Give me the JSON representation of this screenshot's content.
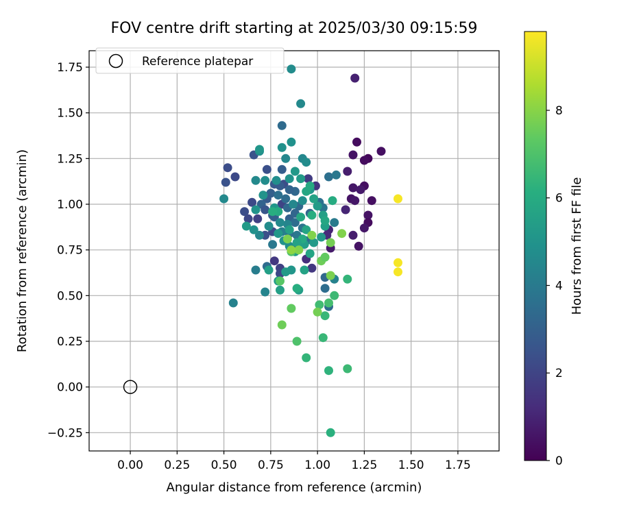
{
  "chart_data": {
    "type": "scatter",
    "title": "FOV centre drift starting at 2025/03/30 09:15:59",
    "xlabel": "Angular distance from reference (arcmin)",
    "ylabel": "Rotation from reference (arcmin)",
    "colorbar_label": "Hours from first FF file",
    "xlim": [
      -0.22,
      1.97
    ],
    "ylim": [
      -0.35,
      1.84
    ],
    "clim": [
      0,
      9.8
    ],
    "colormap": "viridis",
    "grid": true,
    "legend_position": "top-left",
    "x_ticks": [
      "0.00",
      "0.25",
      "0.50",
      "0.75",
      "1.00",
      "1.25",
      "1.50",
      "1.75"
    ],
    "x_tick_values": [
      0,
      0.25,
      0.5,
      0.75,
      1.0,
      1.25,
      1.5,
      1.75
    ],
    "y_ticks": [
      "−0.25",
      "0.00",
      "0.25",
      "0.50",
      "0.75",
      "1.00",
      "1.25",
      "1.50",
      "1.75"
    ],
    "y_tick_values": [
      -0.25,
      0,
      0.25,
      0.5,
      0.75,
      1.0,
      1.25,
      1.5,
      1.75
    ],
    "colorbar_ticks": [
      "0",
      "2",
      "4",
      "6",
      "8"
    ],
    "colorbar_tick_values": [
      0,
      2,
      4,
      6,
      8
    ],
    "reference": {
      "label": "Reference platepar",
      "x": 0,
      "y": 0
    },
    "points": [
      [
        1.2,
        1.69,
        0.9
      ],
      [
        1.21,
        1.34,
        0.3
      ],
      [
        1.34,
        1.29,
        0.4
      ],
      [
        1.27,
        1.25,
        0.2
      ],
      [
        1.25,
        1.24,
        0.3
      ],
      [
        1.19,
        1.27,
        0.5
      ],
      [
        1.16,
        1.18,
        0.8
      ],
      [
        1.19,
        1.09,
        0.6
      ],
      [
        1.25,
        1.1,
        0.4
      ],
      [
        1.23,
        1.08,
        0.7
      ],
      [
        1.18,
        1.03,
        0.5
      ],
      [
        1.2,
        1.02,
        0.6
      ],
      [
        1.29,
        1.02,
        0.4
      ],
      [
        1.27,
        0.94,
        0.5
      ],
      [
        1.27,
        0.9,
        0.3
      ],
      [
        1.15,
        0.97,
        1.0
      ],
      [
        1.25,
        0.87,
        0.6
      ],
      [
        1.19,
        0.83,
        0.8
      ],
      [
        1.22,
        0.77,
        0.5
      ],
      [
        1.07,
        0.76,
        0.7
      ],
      [
        1.06,
        0.86,
        1.0
      ],
      [
        1.05,
        0.83,
        1.2
      ],
      [
        0.99,
        1.1,
        1.5
      ],
      [
        0.95,
        1.14,
        1.7
      ],
      [
        0.94,
        0.7,
        1.3
      ],
      [
        0.97,
        0.65,
        1.6
      ],
      [
        0.87,
        0.75,
        1.8
      ],
      [
        0.77,
        0.69,
        1.6
      ],
      [
        0.8,
        0.65,
        1.9
      ],
      [
        0.8,
        0.62,
        2.1
      ],
      [
        0.82,
        1.11,
        2.3
      ],
      [
        0.81,
        1.0,
        2.0
      ],
      [
        0.76,
        0.85,
        2.2
      ],
      [
        0.72,
        0.83,
        2.4
      ],
      [
        0.68,
        0.92,
        1.9
      ],
      [
        0.63,
        0.92,
        2.1
      ],
      [
        0.61,
        0.96,
        2.3
      ],
      [
        0.65,
        1.01,
        2.2
      ],
      [
        0.56,
        1.15,
        2.2
      ],
      [
        0.52,
        1.2,
        2.3
      ],
      [
        0.51,
        1.12,
        2.5
      ],
      [
        0.66,
        1.27,
        2.5
      ],
      [
        0.73,
        1.19,
        2.4
      ],
      [
        0.8,
        1.1,
        2.8
      ],
      [
        0.81,
        1.43,
        3.4
      ],
      [
        0.81,
        1.19,
        2.9
      ],
      [
        0.77,
        1.11,
        2.7
      ],
      [
        0.75,
        1.06,
        3.0
      ],
      [
        0.73,
        1.03,
        2.8
      ],
      [
        0.7,
        1.0,
        3.1
      ],
      [
        0.72,
        0.97,
        2.6
      ],
      [
        0.76,
        0.94,
        2.8
      ],
      [
        0.77,
        0.93,
        3.0
      ],
      [
        0.85,
        0.92,
        3.0
      ],
      [
        0.88,
        0.95,
        3.2
      ],
      [
        0.9,
        0.99,
        3.3
      ],
      [
        0.88,
        1.07,
        3.3
      ],
      [
        0.85,
        1.08,
        3.1
      ],
      [
        0.83,
        1.03,
        3.4
      ],
      [
        0.79,
        1.05,
        3.6
      ],
      [
        0.84,
        0.98,
        3.3
      ],
      [
        0.88,
        0.9,
        3.5
      ],
      [
        0.92,
        0.87,
        3.7
      ],
      [
        0.96,
        0.95,
        3.2
      ],
      [
        1.01,
        1.01,
        3.6
      ],
      [
        1.03,
        0.98,
        3.8
      ],
      [
        1.06,
        1.15,
        3.6
      ],
      [
        1.1,
        1.16,
        3.9
      ],
      [
        1.09,
        0.9,
        4.0
      ],
      [
        1.04,
        0.6,
        3.3
      ],
      [
        1.04,
        0.54,
        3.5
      ],
      [
        1.09,
        0.59,
        4.3
      ],
      [
        1.06,
        0.44,
        3.4
      ],
      [
        0.94,
        0.8,
        3.5
      ],
      [
        0.89,
        0.83,
        3.9
      ],
      [
        0.85,
        0.84,
        3.6
      ],
      [
        0.81,
        0.85,
        4.2
      ],
      [
        0.76,
        0.78,
        3.9
      ],
      [
        0.73,
        0.66,
        3.4
      ],
      [
        0.67,
        0.64,
        4.1
      ],
      [
        0.72,
        0.52,
        4.4
      ],
      [
        0.55,
        0.46,
        4.3
      ],
      [
        0.5,
        1.03,
        4.6
      ],
      [
        0.67,
        1.13,
        4.6
      ],
      [
        0.69,
        1.29,
        4.8
      ],
      [
        0.69,
        1.3,
        5.1
      ],
      [
        0.72,
        1.13,
        4.7
      ],
      [
        0.78,
        1.13,
        4.8
      ],
      [
        0.81,
        1.31,
        4.9
      ],
      [
        0.83,
        1.25,
        4.5
      ],
      [
        0.86,
        1.34,
        4.9
      ],
      [
        0.86,
        1.74,
        4.7
      ],
      [
        0.91,
        1.55,
        4.6
      ],
      [
        0.92,
        1.25,
        4.5
      ],
      [
        0.94,
        1.23,
        4.7
      ],
      [
        0.88,
        1.18,
        5.2
      ],
      [
        0.85,
        1.14,
        5.0
      ],
      [
        0.91,
        1.14,
        5.3
      ],
      [
        0.96,
        1.08,
        5.1
      ],
      [
        0.92,
        1.02,
        4.8
      ],
      [
        0.87,
        1.0,
        4.5
      ],
      [
        0.84,
        0.89,
        4.4
      ],
      [
        0.8,
        0.9,
        4.6
      ],
      [
        0.74,
        0.88,
        4.7
      ],
      [
        0.69,
        0.83,
        4.5
      ],
      [
        0.66,
        0.86,
        4.9
      ],
      [
        0.62,
        0.88,
        5.3
      ],
      [
        0.67,
        0.97,
        5.0
      ],
      [
        0.71,
        1.05,
        5.0
      ],
      [
        0.77,
        0.98,
        5.1
      ],
      [
        0.79,
        0.84,
        5.2
      ],
      [
        0.82,
        0.8,
        5.0
      ],
      [
        0.85,
        0.77,
        4.8
      ],
      [
        0.88,
        0.74,
        5.3
      ],
      [
        0.86,
        0.64,
        5.1
      ],
      [
        0.83,
        0.63,
        5.3
      ],
      [
        0.79,
        0.58,
        5.4
      ],
      [
        0.74,
        0.64,
        5.5
      ],
      [
        0.8,
        0.53,
        5.5
      ],
      [
        0.9,
        0.53,
        5.4
      ],
      [
        0.93,
        0.64,
        5.6
      ],
      [
        0.96,
        0.73,
        5.7
      ],
      [
        0.93,
        0.78,
        5.4
      ],
      [
        0.98,
        0.79,
        5.3
      ],
      [
        1.02,
        0.82,
        5.2
      ],
      [
        1.04,
        0.88,
        5.5
      ],
      [
        1.03,
        0.94,
        5.5
      ],
      [
        1.0,
        0.99,
        5.3
      ],
      [
        0.98,
        1.03,
        5.6
      ],
      [
        0.94,
        1.07,
        5.8
      ],
      [
        0.96,
        1.1,
        5.9
      ],
      [
        0.91,
        0.93,
        5.8
      ],
      [
        0.94,
        0.86,
        5.7
      ],
      [
        0.92,
        0.81,
        5.9
      ],
      [
        0.89,
        0.79,
        5.6
      ],
      [
        0.85,
        0.86,
        5.5
      ],
      [
        0.79,
        0.96,
        5.9
      ],
      [
        0.76,
        0.96,
        6.1
      ],
      [
        1.04,
        0.91,
        5.8
      ],
      [
        1.08,
        1.02,
        6.0
      ],
      [
        0.97,
        0.94,
        6.1
      ],
      [
        0.89,
        0.54,
        6.1
      ],
      [
        1.16,
        0.59,
        6.4
      ],
      [
        1.04,
        0.39,
        6.5
      ],
      [
        1.09,
        0.5,
        6.6
      ],
      [
        1.06,
        0.46,
        6.8
      ],
      [
        1.01,
        0.45,
        6.7
      ],
      [
        1.03,
        0.27,
        6.5
      ],
      [
        0.94,
        0.16,
        6.4
      ],
      [
        0.89,
        0.25,
        7.0
      ],
      [
        1.06,
        0.09,
        6.3
      ],
      [
        1.16,
        0.1,
        6.6
      ],
      [
        1.07,
        -0.25,
        6.2
      ],
      [
        0.86,
        0.74,
        7.0
      ],
      [
        0.86,
        0.43,
        7.4
      ],
      [
        0.81,
        0.34,
        7.6
      ],
      [
        0.8,
        0.58,
        7.2
      ],
      [
        0.84,
        0.81,
        7.8
      ],
      [
        0.97,
        0.83,
        7.9
      ],
      [
        1.0,
        0.41,
        7.7
      ],
      [
        1.02,
        0.69,
        7.6
      ],
      [
        1.04,
        0.71,
        7.4
      ],
      [
        1.07,
        0.61,
        7.8
      ],
      [
        1.07,
        0.79,
        7.7
      ],
      [
        1.13,
        0.84,
        7.9
      ],
      [
        0.9,
        0.75,
        7.9
      ],
      [
        0.86,
        0.75,
        8.1
      ],
      [
        1.43,
        1.03,
        9.7
      ],
      [
        1.43,
        0.68,
        9.7
      ],
      [
        1.43,
        0.63,
        9.7
      ]
    ]
  }
}
